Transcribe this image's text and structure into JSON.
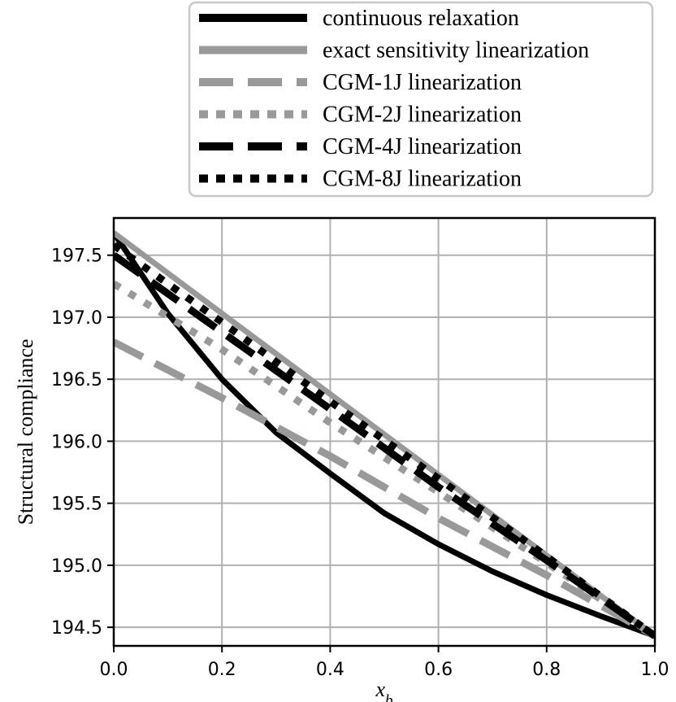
{
  "chart_data": {
    "type": "line",
    "title": "",
    "xlabel": "x_b",
    "ylabel": "Structural compliance",
    "xlim": [
      0.0,
      1.0
    ],
    "ylim": [
      194.35,
      197.8
    ],
    "x_ticks": [
      0.0,
      0.2,
      0.4,
      0.6,
      0.8,
      1.0
    ],
    "x_tick_labels": [
      "0.0",
      "0.2",
      "0.4",
      "0.6",
      "0.8",
      "1.0"
    ],
    "y_ticks": [
      194.5,
      195.0,
      195.5,
      196.0,
      196.5,
      197.0,
      197.5
    ],
    "y_tick_labels": [
      "194.5",
      "195.0",
      "195.5",
      "196.0",
      "196.5",
      "197.0",
      "197.5"
    ],
    "grid": true,
    "legend_placement": "top (above plot)",
    "series": [
      {
        "name": "continuous relaxation",
        "color": "#000000",
        "style": "solid",
        "x": [
          0.0,
          0.1,
          0.2,
          0.3,
          0.4,
          0.5,
          0.6,
          0.7,
          0.8,
          0.9,
          1.0
        ],
        "y": [
          197.68,
          197.03,
          196.5,
          196.07,
          195.74,
          195.42,
          195.17,
          194.95,
          194.76,
          194.59,
          194.43
        ]
      },
      {
        "name": "exact sensitivity linearization",
        "color": "#999999",
        "style": "solid",
        "x": [
          0.0,
          1.0
        ],
        "y": [
          197.68,
          194.43
        ]
      },
      {
        "name": "CGM-1J linearization",
        "color": "#999999",
        "style": "dashed",
        "x": [
          0.0,
          0.2,
          0.4,
          0.6,
          0.8,
          1.0
        ],
        "y": [
          196.8,
          196.35,
          195.88,
          195.38,
          194.92,
          194.43
        ]
      },
      {
        "name": "CGM-2J linearization",
        "color": "#999999",
        "style": "dotted",
        "x": [
          0.0,
          0.2,
          0.4,
          0.6,
          0.8,
          1.0
        ],
        "y": [
          197.27,
          196.74,
          196.15,
          195.59,
          195.02,
          194.43
        ]
      },
      {
        "name": "CGM-4J linearization",
        "color": "#000000",
        "style": "dashed",
        "x": [
          0.0,
          0.2,
          0.4,
          0.6,
          0.8,
          1.0
        ],
        "y": [
          197.5,
          196.88,
          196.26,
          195.63,
          195.04,
          194.43
        ]
      },
      {
        "name": "CGM-8J linearization",
        "color": "#000000",
        "style": "dotted",
        "x": [
          0.0,
          0.2,
          0.4,
          0.6,
          0.8,
          1.0
        ],
        "y": [
          197.58,
          196.96,
          196.32,
          195.7,
          195.07,
          194.43
        ]
      }
    ]
  }
}
